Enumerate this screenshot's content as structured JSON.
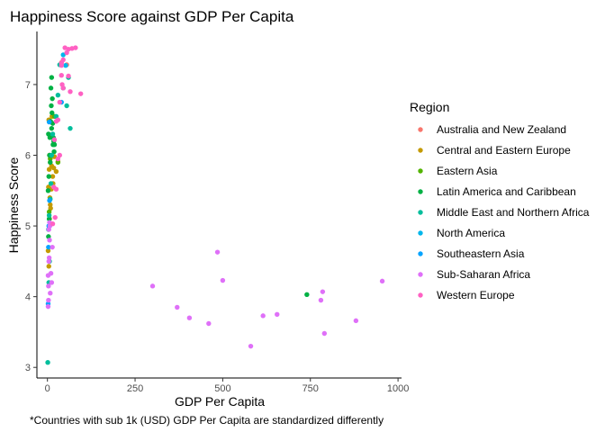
{
  "chart_data": {
    "type": "scatter",
    "title": "Happiness Score against GDP Per Capita",
    "xlabel": "GDP Per Capita",
    "ylabel": "Happiness Score",
    "caption": "*Countries with sub 1k (USD) GDP Per Capita are standardized differently",
    "xlim": [
      -30,
      1010
    ],
    "ylim": [
      2.85,
      7.75
    ],
    "xticks": [
      0,
      250,
      500,
      750,
      1000
    ],
    "yticks": [
      3,
      4,
      5,
      6,
      7
    ],
    "grid": false,
    "legend_title": "Region",
    "legend_position": "right",
    "series": [
      {
        "name": "Australia and New Zealand",
        "color": "#F8766D",
        "points": [
          [
            40,
            7.31
          ],
          [
            55,
            7.28
          ]
        ]
      },
      {
        "name": "Central and Eastern Europe",
        "color": "#C49A00",
        "points": [
          [
            4,
            6.5
          ],
          [
            6,
            6.0
          ],
          [
            5,
            5.8
          ],
          [
            8,
            5.9
          ],
          [
            12,
            5.85
          ],
          [
            15,
            5.7
          ],
          [
            18,
            5.82
          ],
          [
            20,
            5.98
          ],
          [
            25,
            5.77
          ],
          [
            30,
            5.91
          ],
          [
            3,
            5.55
          ],
          [
            7,
            5.4
          ],
          [
            9,
            5.25
          ],
          [
            6,
            5.1
          ],
          [
            2,
            4.65
          ],
          [
            4,
            4.43
          ],
          [
            8,
            5.3
          ],
          [
            11,
            5.52
          ],
          [
            13,
            6.55
          ],
          [
            16,
            5.6
          ]
        ]
      },
      {
        "name": "Eastern Asia",
        "color": "#53B400",
        "points": [
          [
            5,
            5.2
          ],
          [
            8,
            5.95
          ],
          [
            30,
            5.9
          ],
          [
            20,
            6.55
          ]
        ]
      },
      {
        "name": "Latin America and Caribbean",
        "color": "#00B144",
        "points": [
          [
            7,
            6.25
          ],
          [
            9,
            6.48
          ],
          [
            11,
            6.7
          ],
          [
            13,
            6.6
          ],
          [
            15,
            6.45
          ],
          [
            17,
            6.25
          ],
          [
            19,
            6.05
          ],
          [
            10,
            6.95
          ],
          [
            12,
            7.1
          ],
          [
            14,
            6.8
          ],
          [
            16,
            6.15
          ],
          [
            3,
            6.3
          ],
          [
            6,
            6.0
          ],
          [
            4,
            5.7
          ],
          [
            2,
            5.5
          ],
          [
            5,
            5.1
          ],
          [
            3,
            4.85
          ],
          [
            8,
            5.9
          ],
          [
            12,
            6.38
          ],
          [
            740,
            4.03
          ],
          [
            18,
            6.2
          ],
          [
            20,
            6.15
          ]
        ]
      },
      {
        "name": "Middle East and Northern Africa",
        "color": "#00BE9C",
        "points": [
          [
            1,
            3.07
          ],
          [
            3,
            4.95
          ],
          [
            5,
            5.15
          ],
          [
            8,
            5.38
          ],
          [
            10,
            5.6
          ],
          [
            12,
            6.0
          ],
          [
            15,
            6.3
          ],
          [
            25,
            6.55
          ],
          [
            30,
            6.85
          ],
          [
            45,
            6.95
          ],
          [
            60,
            7.1
          ],
          [
            65,
            6.38
          ],
          [
            35,
            7.28
          ],
          [
            6,
            4.5
          ],
          [
            4,
            4.2
          ],
          [
            55,
            6.7
          ]
        ]
      },
      {
        "name": "North America",
        "color": "#00B6EB",
        "points": [
          [
            45,
            7.42
          ],
          [
            52,
            7.27
          ]
        ]
      },
      {
        "name": "Southeastern Asia",
        "color": "#06A4FF",
        "points": [
          [
            5,
            6.47
          ],
          [
            6,
            5.36
          ],
          [
            4,
            5.0
          ],
          [
            3,
            4.7
          ],
          [
            40,
            6.75
          ],
          [
            2,
            3.9
          ]
        ]
      },
      {
        "name": "Sub-Saharan Africa",
        "color": "#DF70F8",
        "points": [
          [
            2,
            4.3
          ],
          [
            3,
            4.15
          ],
          [
            4,
            4.5
          ],
          [
            5,
            4.55
          ],
          [
            6,
            4.8
          ],
          [
            7,
            5.0
          ],
          [
            3,
            3.95
          ],
          [
            2,
            3.86
          ],
          [
            8,
            4.05
          ],
          [
            10,
            4.33
          ],
          [
            12,
            4.2
          ],
          [
            14,
            4.7
          ],
          [
            4,
            4.95
          ],
          [
            6,
            5.05
          ],
          [
            300,
            4.15
          ],
          [
            370,
            3.85
          ],
          [
            405,
            3.7
          ],
          [
            460,
            3.62
          ],
          [
            485,
            4.63
          ],
          [
            500,
            4.23
          ],
          [
            580,
            3.3
          ],
          [
            615,
            3.73
          ],
          [
            655,
            3.75
          ],
          [
            780,
            3.95
          ],
          [
            785,
            4.07
          ],
          [
            790,
            3.48
          ],
          [
            880,
            3.66
          ],
          [
            955,
            4.22
          ]
        ]
      },
      {
        "name": "Western Europe",
        "color": "#FF61C3",
        "points": [
          [
            50,
            7.52
          ],
          [
            60,
            7.5
          ],
          [
            70,
            7.51
          ],
          [
            80,
            7.52
          ],
          [
            55,
            7.45
          ],
          [
            45,
            7.35
          ],
          [
            40,
            7.27
          ],
          [
            42,
            7.0
          ],
          [
            45,
            6.95
          ],
          [
            65,
            6.9
          ],
          [
            95,
            6.87
          ],
          [
            35,
            6.75
          ],
          [
            30,
            6.5
          ],
          [
            25,
            6.48
          ],
          [
            20,
            6.22
          ],
          [
            18,
            5.55
          ],
          [
            22,
            5.12
          ],
          [
            15,
            5.03
          ],
          [
            40,
            7.3
          ],
          [
            60,
            7.12
          ],
          [
            40,
            7.13
          ],
          [
            30,
            5.95
          ],
          [
            25,
            5.52
          ],
          [
            35,
            6.0
          ]
        ]
      }
    ]
  }
}
